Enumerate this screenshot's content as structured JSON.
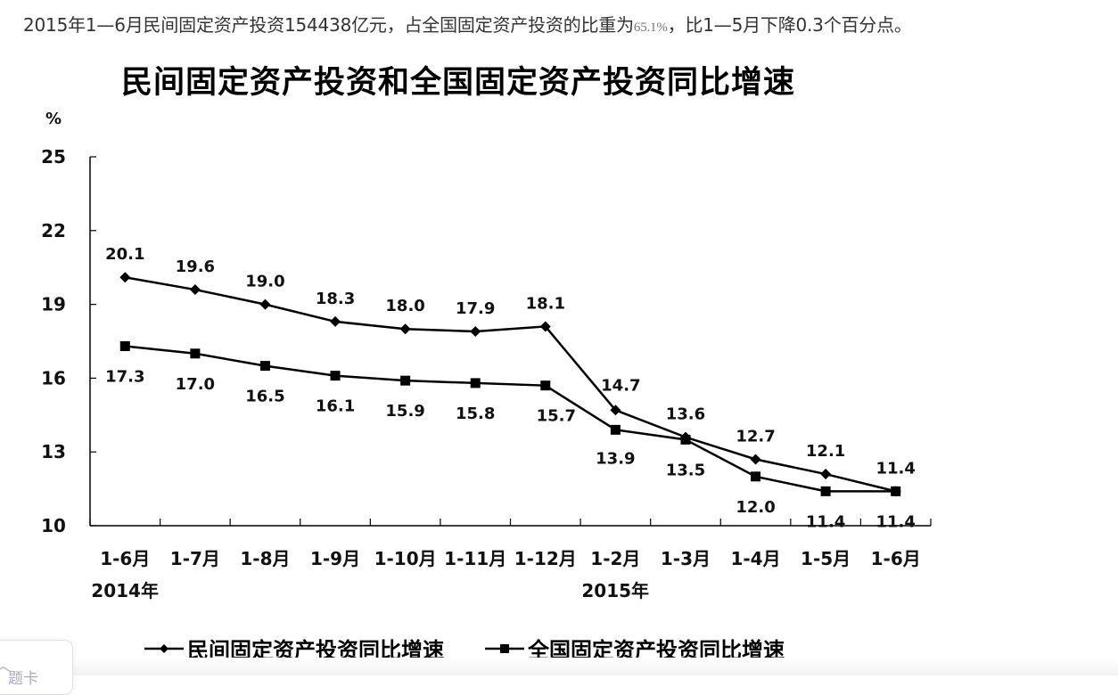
{
  "header": {
    "summary_before": "2015年1—6月民间固定资产投资154438亿元，占全国固定资产投资的比重为",
    "summary_pct": "65.1%",
    "summary_after": "，比1—5月下降0.3个百分点。"
  },
  "footer": {
    "tab_card_label": "题卡",
    "tab_card_icon": "chevron-up-icon"
  },
  "chart_data": {
    "type": "line",
    "title": "民间固定资产投资和全国固定资产投资同比增速",
    "ylabel": "%",
    "xlabel": "",
    "ylim": [
      10,
      25
    ],
    "yticks": [
      10,
      13,
      16,
      19,
      22,
      25
    ],
    "grid": false,
    "legend_position": "bottom",
    "categories": [
      "1-6月",
      "1-7月",
      "1-8月",
      "1-9月",
      "1-10月",
      "1-11月",
      "1-12月",
      "1-2月",
      "1-3月",
      "1-4月",
      "1-5月",
      "1-6月"
    ],
    "year_labels": [
      {
        "index": 0,
        "label": "2014年"
      },
      {
        "index": 7,
        "label": "2015年"
      }
    ],
    "series": [
      {
        "name": "民间固定资产投资同比增速",
        "marker": "diamond",
        "values": [
          20.1,
          19.6,
          19.0,
          18.3,
          18.0,
          17.9,
          18.1,
          14.7,
          13.6,
          12.7,
          12.1,
          11.4
        ]
      },
      {
        "name": "全国固定资产投资同比增速",
        "marker": "square",
        "values": [
          17.3,
          17.0,
          16.5,
          16.1,
          15.9,
          15.8,
          15.7,
          13.9,
          13.5,
          12.0,
          11.4,
          11.4
        ]
      }
    ]
  }
}
